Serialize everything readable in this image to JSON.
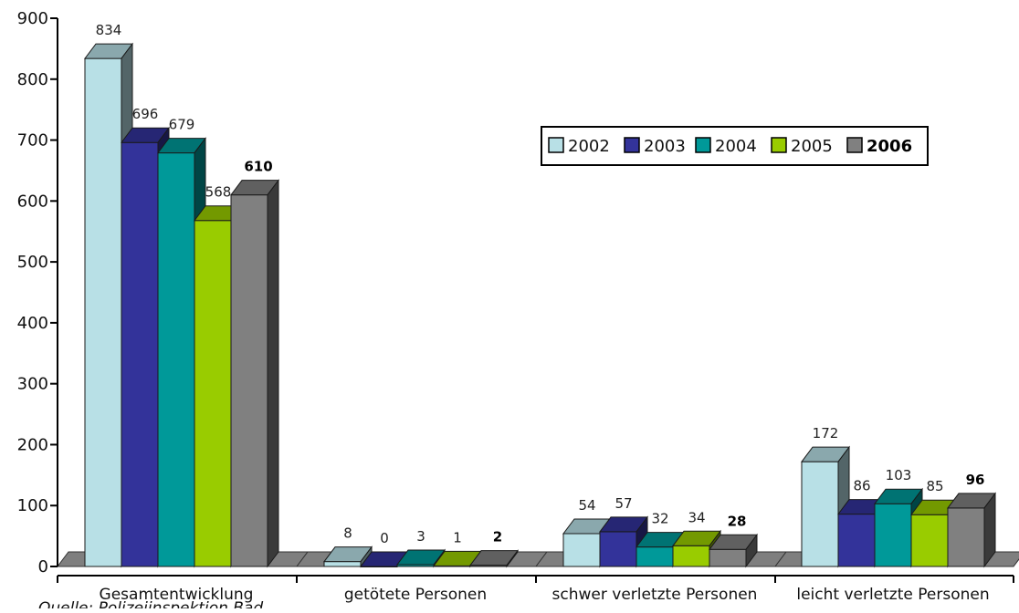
{
  "chart_data": {
    "type": "bar",
    "categories": [
      "Gesamtentwicklung",
      "getötete Personen",
      "schwer verletzte Personen",
      "leicht verletzte Personen"
    ],
    "series": [
      {
        "name": "2002",
        "values": [
          834,
          8,
          54,
          172
        ],
        "color": "#b8e0e6"
      },
      {
        "name": "2003",
        "values": [
          696,
          0,
          57,
          86
        ],
        "color": "#33339a"
      },
      {
        "name": "2004",
        "values": [
          679,
          3,
          32,
          103
        ],
        "color": "#009999"
      },
      {
        "name": "2005",
        "values": [
          568,
          1,
          34,
          85
        ],
        "color": "#99cc00"
      },
      {
        "name": "2006",
        "values": [
          610,
          2,
          28,
          96
        ],
        "color": "#808080"
      }
    ],
    "bold_series": "2006",
    "y_ticks": [
      "0",
      "100",
      "200",
      "300",
      "400",
      "500",
      "600",
      "700",
      "800",
      "900"
    ],
    "ylim": [
      0,
      900
    ],
    "style": "3d-clustered-column",
    "legend_position": "top-right",
    "source_text": "Quelle: Polizeiinspektion Bad"
  }
}
